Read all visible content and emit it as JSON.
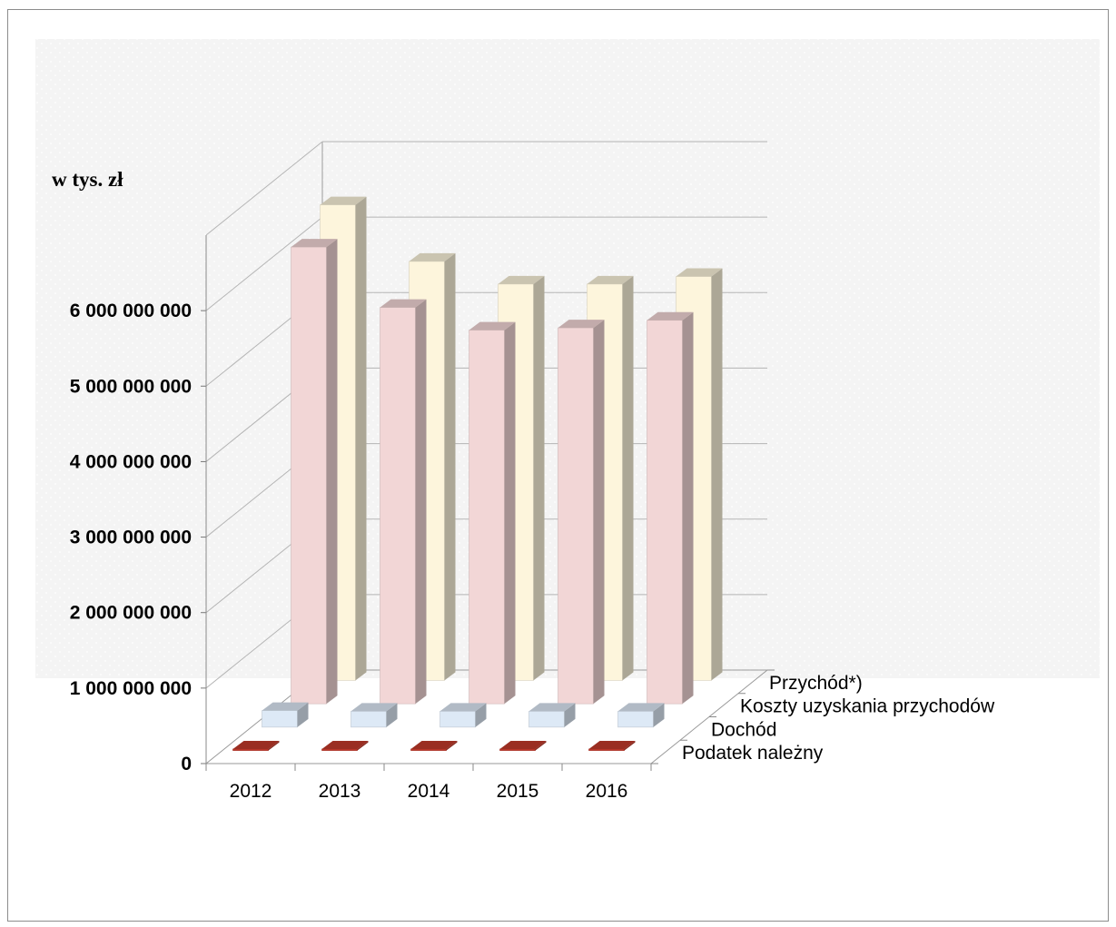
{
  "chart_data": {
    "type": "bar",
    "title": "",
    "ylabel": "w tys. zł",
    "xlabel": "",
    "ylim": [
      0,
      7000000000
    ],
    "ytick_values": [
      0,
      1000000000,
      2000000000,
      3000000000,
      4000000000,
      5000000000,
      6000000000
    ],
    "yticks": [
      "0",
      "1 000 000 000",
      "2 000 000 000",
      "3 000 000 000",
      "4 000 000 000",
      "5 000 000 000",
      "6 000 000 000"
    ],
    "categories": [
      "2012",
      "2013",
      "2014",
      "2015",
      "2016"
    ],
    "series": [
      {
        "name": "Podatek należny",
        "values": [
          20000000,
          20000000,
          20000000,
          20000000,
          20000000
        ],
        "color": "#c0392b"
      },
      {
        "name": "Dochód",
        "values": [
          220000000,
          210000000,
          210000000,
          210000000,
          210000000
        ],
        "color": "#dde9f6"
      },
      {
        "name": "Koszty uzyskania przychodów",
        "values": [
          6050000000,
          5250000000,
          4950000000,
          4980000000,
          5080000000
        ],
        "color": "#f2d6d6"
      },
      {
        "name": "Przychód*)",
        "values": [
          6300000000,
          5550000000,
          5250000000,
          5250000000,
          5350000000
        ],
        "color": "#fdf5dc"
      }
    ],
    "legend": "depth-axis-right",
    "grid": true
  }
}
